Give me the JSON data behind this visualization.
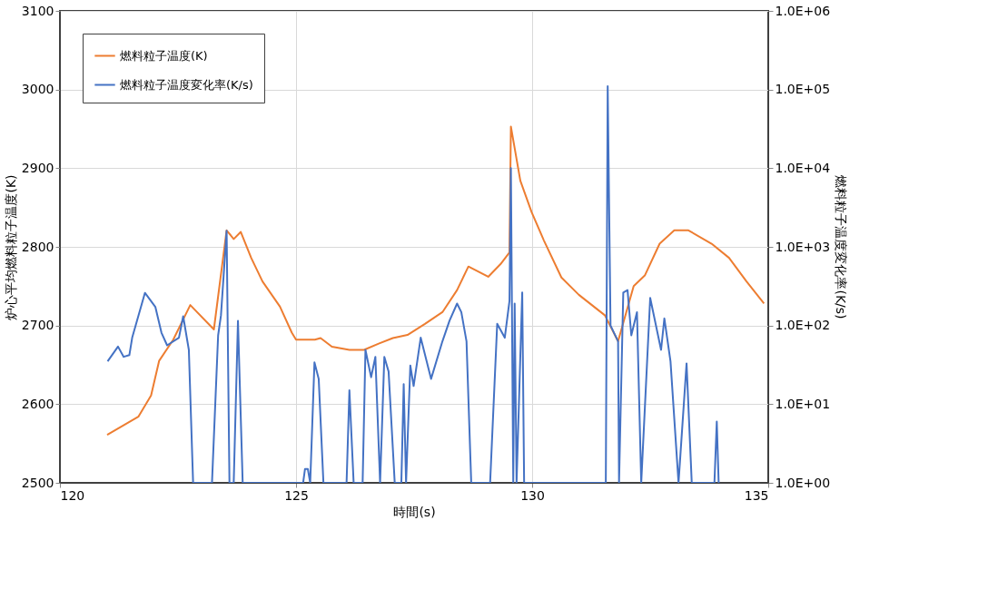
{
  "chart_data": {
    "type": "line",
    "xlabel": "時間(s)",
    "ylabel": "炉心平均燃料粒子温度(K)",
    "y2label": "燃料粒子温度変化率(K/s)",
    "xlim": [
      120,
      135
    ],
    "xticks": [
      120,
      125,
      130,
      135
    ],
    "ylim": [
      2500,
      3100
    ],
    "yticks": [
      2500,
      2600,
      2700,
      2800,
      2900,
      3000,
      3100
    ],
    "y2lim": [
      1,
      1000000
    ],
    "y2ticks": [
      {
        "value": 1,
        "label": "1.0E+00"
      },
      {
        "value": 10,
        "label": "1.0E+01"
      },
      {
        "value": 100,
        "label": "1.0E+02"
      },
      {
        "value": 1000,
        "label": "1.0E+03"
      },
      {
        "value": 10000,
        "label": "1.0E+04"
      },
      {
        "value": 100000,
        "label": "1.0E+05"
      },
      {
        "value": 1000000,
        "label": "1.0E+06"
      }
    ],
    "log": "y2",
    "grid": true,
    "legend": "top left",
    "series": [
      {
        "name": "燃料粒子温度(K)",
        "color": "#ed7d31",
        "x": [
          121.0,
          121.66,
          121.93,
          122.1,
          122.4,
          122.76,
          123.26,
          123.53,
          123.68,
          123.83,
          124.05,
          124.29,
          124.66,
          124.91,
          125.0,
          125.4,
          125.52,
          125.76,
          126.13,
          126.44,
          126.75,
          127.05,
          127.36,
          127.73,
          128.1,
          128.41,
          128.65,
          129.07,
          129.33,
          129.52,
          129.55,
          129.75,
          129.99,
          130.25,
          130.62,
          130.99,
          131.54,
          131.82,
          132.15,
          132.39,
          132.7,
          133.01,
          133.31,
          133.8,
          134.17,
          134.54,
          134.91
        ],
        "values": [
          2561,
          2584,
          2611,
          2655,
          2682,
          2726,
          2695,
          2821,
          2810,
          2819,
          2786,
          2756,
          2724,
          2691,
          2682,
          2682,
          2684,
          2673,
          2669,
          2669,
          2677,
          2684,
          2688,
          2702,
          2717,
          2745,
          2775,
          2762,
          2778,
          2793,
          2953,
          2884,
          2844,
          2808,
          2761,
          2739,
          2713,
          2680,
          2750,
          2764,
          2804,
          2821,
          2821,
          2804,
          2786,
          2756,
          2728
        ]
      },
      {
        "name": "燃料粒子温度変化率(K/s)",
        "color": "#4472c4",
        "axis": "y2",
        "x": [
          121.01,
          121.23,
          121.35,
          121.47,
          121.53,
          121.8,
          122.02,
          122.15,
          122.27,
          122.52,
          122.61,
          122.73,
          122.82,
          123.22,
          123.35,
          123.41,
          123.53,
          123.59,
          123.68,
          123.77,
          123.87,
          125.15,
          125.19,
          125.25,
          125.3,
          125.39,
          125.48,
          125.58,
          126.07,
          126.13,
          126.22,
          126.41,
          126.47,
          126.59,
          126.68,
          126.78,
          126.87,
          126.96,
          127.09,
          127.23,
          127.28,
          127.33,
          127.42,
          127.49,
          127.64,
          127.86,
          128.1,
          128.25,
          128.41,
          128.5,
          128.61,
          128.71,
          129.11,
          129.26,
          129.42,
          129.52,
          129.55,
          129.6,
          129.63,
          129.67,
          129.79,
          129.83,
          131.56,
          131.6,
          131.66,
          131.82,
          131.84,
          131.93,
          132.02,
          132.1,
          132.22,
          132.31,
          132.5,
          132.73,
          132.8,
          132.93,
          133.1,
          133.27,
          133.38,
          133.86,
          133.91,
          133.95
        ],
        "values": [
          35,
          54,
          40,
          42,
          70,
          260,
          173,
          81,
          56,
          70,
          131,
          49,
          1,
          1,
          75,
          134,
          1600,
          1,
          1,
          115,
          1,
          1,
          1.5,
          1.5,
          1,
          34,
          21,
          1,
          1,
          15,
          1,
          1,
          49,
          22,
          40,
          1,
          40,
          26,
          1,
          1,
          18,
          1,
          31,
          17,
          70,
          21,
          63,
          115,
          190,
          148,
          63,
          1,
          1,
          105,
          70,
          205,
          10000,
          1,
          190,
          1,
          263,
          1,
          1,
          110000,
          100,
          63,
          1,
          263,
          282,
          75,
          148,
          1,
          224,
          49,
          123,
          35,
          1,
          33,
          1,
          1,
          6,
          1
        ]
      }
    ]
  }
}
